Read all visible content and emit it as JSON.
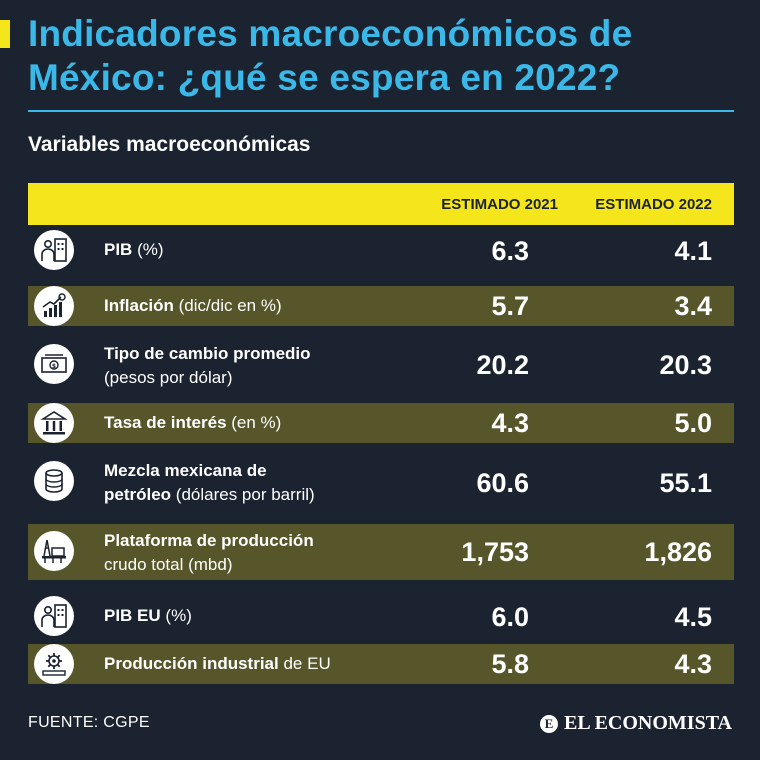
{
  "title": "Indicadores macroeconómicos de México: ¿qué se espera en 2022?",
  "subtitle": "Variables macroeconómicas",
  "columns": {
    "col2021": "ESTIMADO 2021",
    "col2022": "ESTIMADO 2022"
  },
  "rows": [
    {
      "icon": "people-building-icon",
      "label_bold": "PIB",
      "label_rest": " (%)",
      "label_line2": "",
      "v2021": "6.3",
      "v2022": "4.1"
    },
    {
      "icon": "growth-chart-icon",
      "label_bold": "Inflación",
      "label_rest": " (dic/dic en %)",
      "label_line2": "",
      "v2021": "5.7",
      "v2022": "3.4"
    },
    {
      "icon": "banknote-icon",
      "label_bold": "Tipo de cambio promedio",
      "label_rest": "",
      "label_line2": "(pesos por dólar)",
      "v2021": "20.2",
      "v2022": "20.3"
    },
    {
      "icon": "bank-building-icon",
      "label_bold": "Tasa de interés",
      "label_rest": " (en %)",
      "label_line2": "",
      "v2021": "4.3",
      "v2022": "5.0"
    },
    {
      "icon": "oil-barrel-icon",
      "label_bold": "Mezcla mexicana de",
      "label_rest": "",
      "label_line2_bold": "petróleo",
      "label_line2": " (dólares por barril)",
      "v2021": "60.6",
      "v2022": "55.1"
    },
    {
      "icon": "oil-platform-icon",
      "label_bold": "Plataforma de producción",
      "label_rest": "",
      "label_line2": "crudo total (mbd)",
      "v2021": "1,753",
      "v2022": "1,826"
    },
    {
      "icon": "people-building-icon",
      "label_bold": "PIB EU",
      "label_rest": " (%)",
      "label_line2": "",
      "v2021": "6.0",
      "v2022": "4.5"
    },
    {
      "icon": "gear-industry-icon",
      "label_bold": "Producción industrial",
      "label_rest": " de EU",
      "label_line2": "",
      "v2021": "5.8",
      "v2022": "4.3"
    }
  ],
  "footer": {
    "source": "FUENTE: CGPE",
    "brand": "EL ECONOMISTA",
    "brand_mark": "E"
  },
  "colors": {
    "background": "#1b2230",
    "title": "#3ab8e8",
    "header": "#f5e51b",
    "row_shade": "#56562a"
  }
}
